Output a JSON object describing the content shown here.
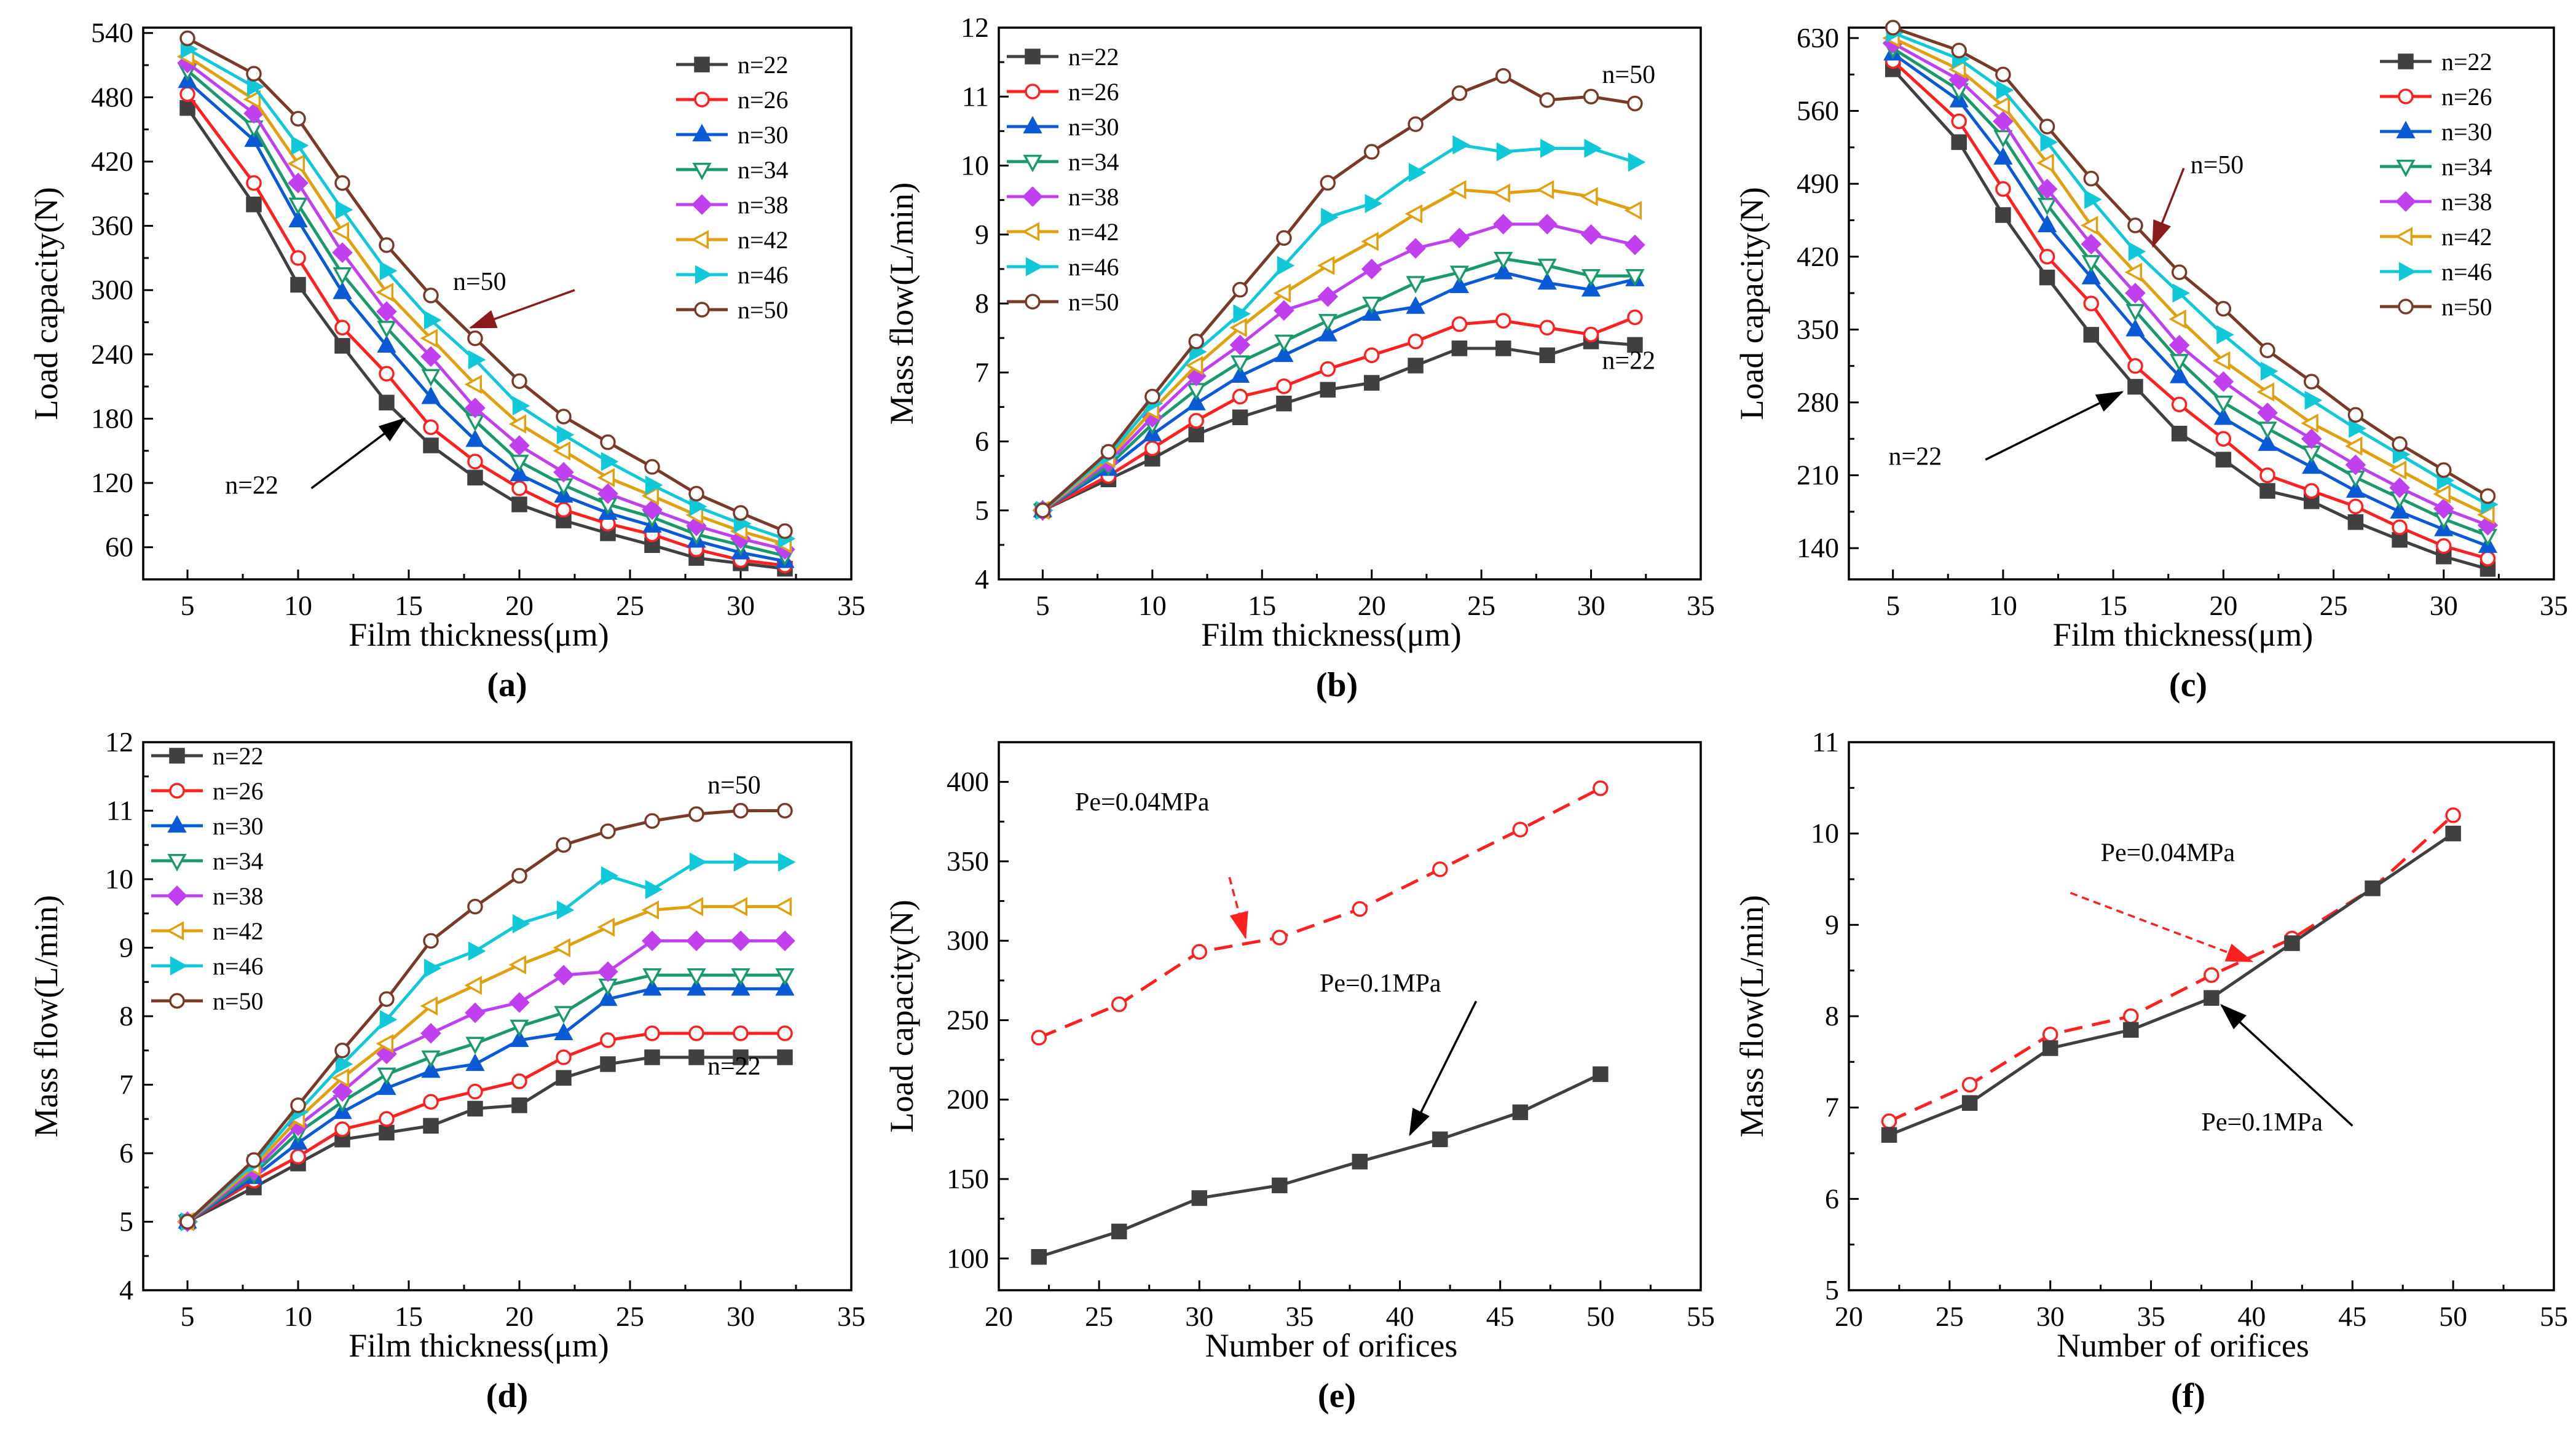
{
  "charts": [
    {
      "id": "a",
      "panel_label": "(a)",
      "type": "line",
      "xlabel": "Film thickness(μm)",
      "ylabel": "Load capacity(N)",
      "xlim": [
        3,
        35
      ],
      "ylim": [
        30,
        545
      ],
      "xticks": [
        5,
        10,
        15,
        20,
        25,
        30,
        35
      ],
      "yticks": [
        60,
        120,
        180,
        240,
        300,
        360,
        420,
        480,
        540
      ],
      "x": [
        5,
        8,
        10,
        12,
        14,
        16,
        18,
        20,
        22,
        24,
        26,
        28,
        30,
        32
      ],
      "series": [
        {
          "name": "n=22",
          "color": "#404040",
          "marker": "square",
          "values": [
            470,
            380,
            305,
            248,
            195,
            155,
            125,
            100,
            85,
            73,
            62,
            50,
            45,
            40
          ]
        },
        {
          "name": "n=26",
          "color": "#ff2020",
          "marker": "circle",
          "values": [
            483,
            400,
            330,
            265,
            222,
            172,
            140,
            115,
            95,
            82,
            72,
            58,
            48,
            43
          ]
        },
        {
          "name": "n=30",
          "color": "#0a5ad6",
          "marker": "triangle-up",
          "values": [
            495,
            440,
            365,
            298,
            248,
            200,
            160,
            128,
            108,
            92,
            80,
            66,
            55,
            47
          ]
        },
        {
          "name": "n=34",
          "color": "#1a9a6a",
          "marker": "triangle-down",
          "values": [
            505,
            452,
            380,
            315,
            265,
            220,
            178,
            140,
            118,
            100,
            88,
            72,
            62,
            52
          ]
        },
        {
          "name": "n=38",
          "color": "#c040f0",
          "marker": "diamond",
          "values": [
            512,
            465,
            400,
            335,
            280,
            238,
            190,
            155,
            130,
            110,
            95,
            80,
            68,
            58
          ]
        },
        {
          "name": "n=42",
          "color": "#e0a010",
          "marker": "triangle-left",
          "values": [
            518,
            478,
            418,
            355,
            298,
            255,
            212,
            175,
            150,
            125,
            108,
            90,
            75,
            63
          ]
        },
        {
          "name": "n=46",
          "color": "#10c8d8",
          "marker": "triangle-right",
          "values": [
            525,
            490,
            435,
            375,
            318,
            272,
            235,
            192,
            165,
            140,
            118,
            98,
            82,
            68
          ]
        },
        {
          "name": "n=50",
          "color": "#7a3a2a",
          "marker": "circle",
          "values": [
            535,
            502,
            460,
            400,
            342,
            295,
            255,
            215,
            182,
            158,
            135,
            110,
            92,
            75
          ]
        }
      ],
      "annotations": [
        {
          "text": "n=50",
          "color": "#8b1a1a"
        },
        {
          "text": "n=22",
          "color": "#333333"
        }
      ]
    },
    {
      "id": "b",
      "panel_label": "(b)",
      "type": "line",
      "xlabel": "Film thickness(μm)",
      "ylabel": "Mass flow(L/min)",
      "xlim": [
        3,
        35
      ],
      "ylim": [
        4,
        12
      ],
      "xticks": [
        5,
        10,
        15,
        20,
        25,
        30,
        35
      ],
      "yticks": [
        4,
        5,
        6,
        7,
        8,
        9,
        10,
        11,
        12
      ],
      "x": [
        5,
        8,
        10,
        12,
        14,
        16,
        18,
        20,
        22,
        24,
        26,
        28,
        30,
        32
      ],
      "series": [
        {
          "name": "n=22",
          "color": "#404040",
          "marker": "square",
          "values": [
            5.0,
            5.45,
            5.75,
            6.1,
            6.35,
            6.55,
            6.75,
            6.85,
            7.1,
            7.35,
            7.35,
            7.25,
            7.45,
            7.4
          ]
        },
        {
          "name": "n=26",
          "color": "#ff2020",
          "marker": "circle",
          "values": [
            5.0,
            5.5,
            5.9,
            6.3,
            6.65,
            6.8,
            7.05,
            7.25,
            7.45,
            7.7,
            7.75,
            7.65,
            7.55,
            7.8
          ]
        },
        {
          "name": "n=30",
          "color": "#0a5ad6",
          "marker": "triangle-up",
          "values": [
            5.0,
            5.6,
            6.1,
            6.55,
            6.95,
            7.25,
            7.55,
            7.85,
            7.95,
            8.25,
            8.45,
            8.3,
            8.2,
            8.35
          ]
        },
        {
          "name": "n=34",
          "color": "#1a9a6a",
          "marker": "triangle-down",
          "values": [
            5.0,
            5.65,
            6.25,
            6.75,
            7.15,
            7.45,
            7.75,
            8.0,
            8.3,
            8.45,
            8.65,
            8.55,
            8.4,
            8.4
          ]
        },
        {
          "name": "n=38",
          "color": "#c040f0",
          "marker": "diamond",
          "values": [
            5.0,
            5.7,
            6.35,
            6.95,
            7.4,
            7.9,
            8.1,
            8.5,
            8.8,
            8.95,
            9.15,
            9.15,
            9.0,
            8.85
          ]
        },
        {
          "name": "n=42",
          "color": "#e0a010",
          "marker": "triangle-left",
          "values": [
            5.0,
            5.75,
            6.45,
            7.1,
            7.65,
            8.15,
            8.55,
            8.9,
            9.3,
            9.65,
            9.6,
            9.65,
            9.55,
            9.35
          ]
        },
        {
          "name": "n=46",
          "color": "#10c8d8",
          "marker": "triangle-right",
          "values": [
            5.0,
            5.8,
            6.55,
            7.3,
            7.85,
            8.55,
            9.25,
            9.45,
            9.9,
            10.3,
            10.2,
            10.25,
            10.25,
            10.05
          ]
        },
        {
          "name": "n=50",
          "color": "#7a3a2a",
          "marker": "circle",
          "values": [
            5.0,
            5.85,
            6.65,
            7.45,
            8.2,
            8.95,
            9.75,
            10.2,
            10.6,
            11.05,
            11.3,
            10.95,
            11.0,
            10.9
          ]
        }
      ],
      "annotations": [
        {
          "text": "n=50",
          "color": "#000000"
        },
        {
          "text": "n=22",
          "color": "#000000"
        }
      ]
    },
    {
      "id": "c",
      "panel_label": "(c)",
      "type": "line",
      "xlabel": "Film thickness(μm)",
      "ylabel": "Load capacity(N)",
      "xlim": [
        3,
        35
      ],
      "ylim": [
        110,
        640
      ],
      "xticks": [
        5,
        10,
        15,
        20,
        25,
        30,
        35
      ],
      "yticks": [
        140,
        210,
        280,
        350,
        420,
        490,
        560,
        630
      ],
      "x": [
        5,
        8,
        10,
        12,
        14,
        16,
        18,
        20,
        22,
        24,
        26,
        28,
        30,
        32
      ],
      "series": [
        {
          "name": "n=22",
          "color": "#404040",
          "marker": "square",
          "values": [
            600,
            530,
            460,
            400,
            345,
            295,
            250,
            225,
            195,
            185,
            165,
            148,
            132,
            120
          ]
        },
        {
          "name": "n=26",
          "color": "#ff2020",
          "marker": "circle",
          "values": [
            608,
            550,
            485,
            420,
            375,
            315,
            278,
            245,
            210,
            195,
            180,
            160,
            142,
            130
          ]
        },
        {
          "name": "n=30",
          "color": "#0a5ad6",
          "marker": "triangle-up",
          "values": [
            615,
            570,
            515,
            450,
            400,
            350,
            305,
            265,
            240,
            218,
            195,
            175,
            158,
            142
          ]
        },
        {
          "name": "n=34",
          "color": "#1a9a6a",
          "marker": "triangle-down",
          "values": [
            620,
            580,
            535,
            470,
            415,
            368,
            320,
            280,
            255,
            232,
            208,
            188,
            168,
            152
          ]
        },
        {
          "name": "n=38",
          "color": "#c040f0",
          "marker": "diamond",
          "values": [
            625,
            590,
            550,
            485,
            432,
            385,
            335,
            300,
            270,
            245,
            220,
            198,
            178,
            162
          ]
        },
        {
          "name": "n=42",
          "color": "#e0a010",
          "marker": "triangle-left",
          "values": [
            630,
            600,
            565,
            510,
            450,
            405,
            360,
            320,
            290,
            260,
            238,
            215,
            192,
            172
          ]
        },
        {
          "name": "n=46",
          "color": "#10c8d8",
          "marker": "triangle-right",
          "values": [
            635,
            610,
            580,
            530,
            475,
            425,
            385,
            345,
            310,
            282,
            255,
            230,
            205,
            182
          ]
        },
        {
          "name": "n=50",
          "color": "#7a3a2a",
          "marker": "circle",
          "values": [
            640,
            618,
            595,
            545,
            495,
            450,
            405,
            370,
            330,
            300,
            268,
            240,
            215,
            190
          ]
        }
      ],
      "annotations": [
        {
          "text": "n=50",
          "color": "#000000"
        },
        {
          "text": "n=22",
          "color": "#000000"
        }
      ]
    },
    {
      "id": "d",
      "panel_label": "(d)",
      "type": "line",
      "xlabel": "Film thickness(μm)",
      "ylabel": "Mass flow(L/min)",
      "xlim": [
        3,
        35
      ],
      "ylim": [
        4,
        12
      ],
      "xticks": [
        5,
        10,
        15,
        20,
        25,
        30,
        35
      ],
      "yticks": [
        4,
        5,
        6,
        7,
        8,
        9,
        10,
        11,
        12
      ],
      "x": [
        5,
        8,
        10,
        12,
        14,
        16,
        18,
        20,
        22,
        24,
        26,
        28,
        30,
        32
      ],
      "series": [
        {
          "name": "n=22",
          "color": "#404040",
          "marker": "square",
          "values": [
            5.0,
            5.5,
            5.85,
            6.2,
            6.3,
            6.4,
            6.65,
            6.7,
            7.1,
            7.3,
            7.4,
            7.4,
            7.4,
            7.4
          ]
        },
        {
          "name": "n=26",
          "color": "#ff2020",
          "marker": "circle",
          "values": [
            5.0,
            5.6,
            5.95,
            6.35,
            6.5,
            6.75,
            6.9,
            7.05,
            7.4,
            7.65,
            7.75,
            7.75,
            7.75,
            7.75
          ]
        },
        {
          "name": "n=30",
          "color": "#0a5ad6",
          "marker": "triangle-up",
          "values": [
            5.0,
            5.65,
            6.15,
            6.6,
            6.95,
            7.2,
            7.3,
            7.65,
            7.75,
            8.25,
            8.4,
            8.4,
            8.4,
            8.4
          ]
        },
        {
          "name": "n=34",
          "color": "#1a9a6a",
          "marker": "triangle-down",
          "values": [
            5.0,
            5.7,
            6.3,
            6.75,
            7.15,
            7.4,
            7.6,
            7.85,
            8.05,
            8.45,
            8.6,
            8.6,
            8.6,
            8.6
          ]
        },
        {
          "name": "n=38",
          "color": "#c040f0",
          "marker": "diamond",
          "values": [
            5.0,
            5.75,
            6.4,
            6.9,
            7.45,
            7.75,
            8.05,
            8.2,
            8.6,
            8.65,
            9.1,
            9.1,
            9.1,
            9.1
          ]
        },
        {
          "name": "n=42",
          "color": "#e0a010",
          "marker": "triangle-left",
          "values": [
            5.0,
            5.8,
            6.5,
            7.1,
            7.6,
            8.15,
            8.45,
            8.75,
            9.0,
            9.3,
            9.55,
            9.6,
            9.6,
            9.6
          ]
        },
        {
          "name": "n=46",
          "color": "#10c8d8",
          "marker": "triangle-right",
          "values": [
            5.0,
            5.85,
            6.6,
            7.3,
            7.95,
            8.7,
            8.95,
            9.35,
            9.55,
            10.05,
            9.85,
            10.25,
            10.25,
            10.25
          ]
        },
        {
          "name": "n=50",
          "color": "#7a3a2a",
          "marker": "circle",
          "values": [
            5.0,
            5.9,
            6.7,
            7.5,
            8.25,
            9.1,
            9.6,
            10.05,
            10.5,
            10.7,
            10.85,
            10.95,
            11.0,
            11.0
          ]
        }
      ],
      "annotations": [
        {
          "text": "n=50",
          "color": "#000000"
        },
        {
          "text": "n=22",
          "color": "#000000"
        }
      ]
    },
    {
      "id": "e",
      "panel_label": "(e)",
      "type": "line",
      "xlabel": "Number of orifices",
      "ylabel": "Load capacity(N)",
      "xlim": [
        20,
        55
      ],
      "ylim": [
        80,
        425
      ],
      "xticks": [
        20,
        25,
        30,
        35,
        40,
        45,
        50,
        55
      ],
      "yticks": [
        100,
        150,
        200,
        250,
        300,
        350,
        400
      ],
      "x": [
        22,
        26,
        30,
        34,
        38,
        42,
        46,
        50
      ],
      "series": [
        {
          "name": "Pe=0.04MPa",
          "color": "#ff2020",
          "marker": "circle",
          "dashed": true,
          "values": [
            239,
            260,
            293,
            302,
            320,
            345,
            370,
            396
          ]
        },
        {
          "name": "Pe=0.1MPa",
          "color": "#404040",
          "marker": "square",
          "dashed": false,
          "values": [
            101,
            117,
            138,
            146,
            161,
            175,
            192,
            216
          ]
        }
      ],
      "annotations": [
        {
          "text": "Pe=0.04MPa",
          "color": "#000000"
        },
        {
          "text": "Pe=0.1MPa",
          "color": "#000000"
        }
      ]
    },
    {
      "id": "f",
      "panel_label": "(f)",
      "type": "line",
      "xlabel": "Number of orifices",
      "ylabel": "Mass flow(L/min)",
      "xlim": [
        20,
        55
      ],
      "ylim": [
        5,
        11
      ],
      "xticks": [
        20,
        25,
        30,
        35,
        40,
        45,
        50,
        55
      ],
      "yticks": [
        5,
        6,
        7,
        8,
        9,
        10,
        11
      ],
      "x": [
        22,
        26,
        30,
        34,
        38,
        42,
        46,
        50
      ],
      "series": [
        {
          "name": "Pe=0.04MPa",
          "color": "#ff2020",
          "marker": "circle",
          "dashed": true,
          "values": [
            6.85,
            7.25,
            7.8,
            8.0,
            8.45,
            8.85,
            9.4,
            10.2
          ]
        },
        {
          "name": "Pe=0.1MPa",
          "color": "#404040",
          "marker": "square",
          "dashed": false,
          "values": [
            6.7,
            7.05,
            7.65,
            7.85,
            8.2,
            8.8,
            9.4,
            10.0
          ]
        }
      ],
      "annotations": [
        {
          "text": "Pe=0.04MPa",
          "color": "#000000"
        },
        {
          "text": "Pe=0.1MPa",
          "color": "#000000"
        }
      ]
    }
  ]
}
